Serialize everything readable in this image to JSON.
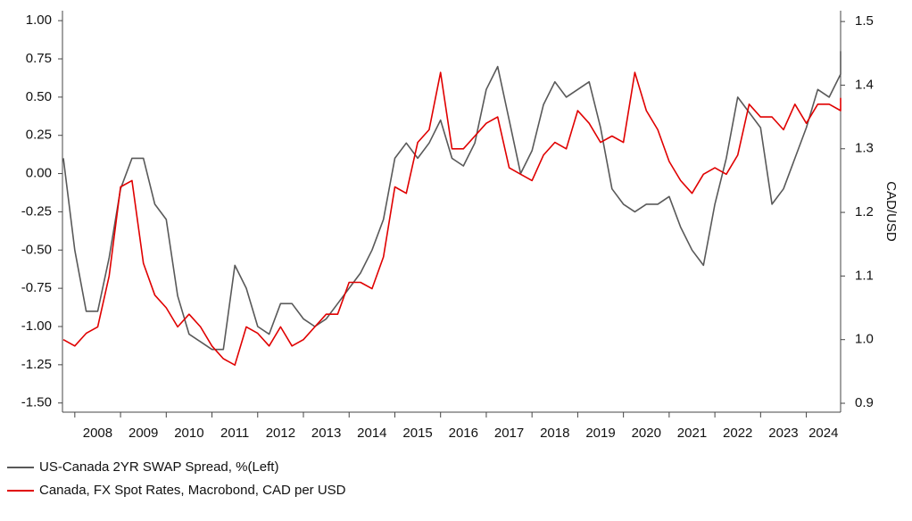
{
  "chart_data": {
    "type": "line",
    "y2_label": "CAD/USD",
    "x": [
      2007.75,
      2008,
      2008.25,
      2008.5,
      2008.75,
      2009,
      2009.25,
      2009.5,
      2009.75,
      2010,
      2010.25,
      2010.5,
      2010.75,
      2011,
      2011.25,
      2011.5,
      2011.75,
      2012,
      2012.25,
      2012.5,
      2012.75,
      2013,
      2013.25,
      2013.5,
      2013.75,
      2014,
      2014.25,
      2014.5,
      2014.75,
      2015,
      2015.25,
      2015.5,
      2015.75,
      2016,
      2016.25,
      2016.5,
      2016.75,
      2017,
      2017.25,
      2017.5,
      2017.75,
      2018,
      2018.25,
      2018.5,
      2018.75,
      2019,
      2019.25,
      2019.5,
      2019.75,
      2020,
      2020.25,
      2020.5,
      2020.75,
      2021,
      2021.25,
      2021.5,
      2021.75,
      2022,
      2022.25,
      2022.5,
      2022.75,
      2023,
      2023.25,
      2023.5,
      2023.75,
      2024,
      2024.25,
      2024.5,
      2024.75,
      2024.75
    ],
    "series": [
      {
        "name": "US-Canada 2YR SWAP Spread, %(Left)",
        "color": "#595959",
        "axis": "y",
        "values": [
          0.1,
          -0.5,
          -0.9,
          -0.9,
          -0.55,
          -0.1,
          0.1,
          0.1,
          -0.2,
          -0.3,
          -0.8,
          -1.05,
          -1.1,
          -1.15,
          -1.15,
          -0.6,
          -0.75,
          -1.0,
          -1.05,
          -0.85,
          -0.85,
          -0.95,
          -1.0,
          -0.95,
          -0.85,
          -0.75,
          -0.65,
          -0.5,
          -0.3,
          0.1,
          0.2,
          0.1,
          0.2,
          0.35,
          0.1,
          0.05,
          0.2,
          0.55,
          0.7,
          0.35,
          0.0,
          0.15,
          0.45,
          0.6,
          0.5,
          0.55,
          0.6,
          0.3,
          -0.1,
          -0.2,
          -0.25,
          -0.2,
          -0.2,
          -0.15,
          -0.35,
          -0.5,
          -0.6,
          -0.2,
          0.1,
          0.5,
          0.4,
          0.3,
          -0.2,
          -0.1,
          0.1,
          0.3,
          0.55,
          0.5,
          0.65,
          0.8
        ]
      },
      {
        "name": "Canada, FX Spot Rates, Macrobond, CAD per USD",
        "color": "#e00000",
        "axis": "y2",
        "values": [
          1.0,
          0.99,
          1.01,
          1.02,
          1.1,
          1.24,
          1.25,
          1.12,
          1.07,
          1.05,
          1.02,
          1.04,
          1.02,
          0.99,
          0.97,
          0.96,
          1.02,
          1.01,
          0.99,
          1.02,
          0.99,
          1.0,
          1.02,
          1.04,
          1.04,
          1.09,
          1.09,
          1.08,
          1.13,
          1.24,
          1.23,
          1.31,
          1.33,
          1.42,
          1.3,
          1.3,
          1.32,
          1.34,
          1.35,
          1.27,
          1.26,
          1.25,
          1.29,
          1.31,
          1.3,
          1.36,
          1.34,
          1.31,
          1.32,
          1.31,
          1.42,
          1.36,
          1.33,
          1.28,
          1.25,
          1.23,
          1.26,
          1.27,
          1.26,
          1.29,
          1.37,
          1.35,
          1.35,
          1.33,
          1.37,
          1.34,
          1.37,
          1.37,
          1.36,
          1.38
        ]
      }
    ],
    "xlim": [
      2007.73,
      2024.75
    ],
    "xticks": [
      2008,
      2009,
      2010,
      2011,
      2012,
      2013,
      2014,
      2015,
      2016,
      2017,
      2018,
      2019,
      2020,
      2021,
      2022,
      2023,
      2024
    ],
    "ylim": [
      -1.56,
      1.065
    ],
    "yticks": [
      {
        "value": 1,
        "label": "1.00"
      },
      {
        "value": 0.75,
        "label": "0.75"
      },
      {
        "value": 0.5,
        "label": "0.50"
      },
      {
        "value": 0.25,
        "label": "0.25"
      },
      {
        "value": 0,
        "label": "0.00"
      },
      {
        "value": -0.25,
        "label": "-0.25"
      },
      {
        "value": -0.5,
        "label": "-0.50"
      },
      {
        "value": -0.75,
        "label": "-0.75"
      },
      {
        "value": -1,
        "label": "-1.00"
      },
      {
        "value": -1.25,
        "label": "-1.25"
      },
      {
        "value": -1.5,
        "label": "-1.50"
      }
    ],
    "y2lim": [
      0.886,
      1.517
    ],
    "y2ticks": [
      {
        "value": 0.9,
        "label": "0.9"
      },
      {
        "value": 1,
        "label": "1.0"
      },
      {
        "value": 1.1,
        "label": "1.1"
      },
      {
        "value": 1.2,
        "label": "1.2"
      },
      {
        "value": 1.3,
        "label": "1.3"
      },
      {
        "value": 1.4,
        "label": "1.4"
      },
      {
        "value": 1.5,
        "label": "1.5"
      }
    ]
  }
}
